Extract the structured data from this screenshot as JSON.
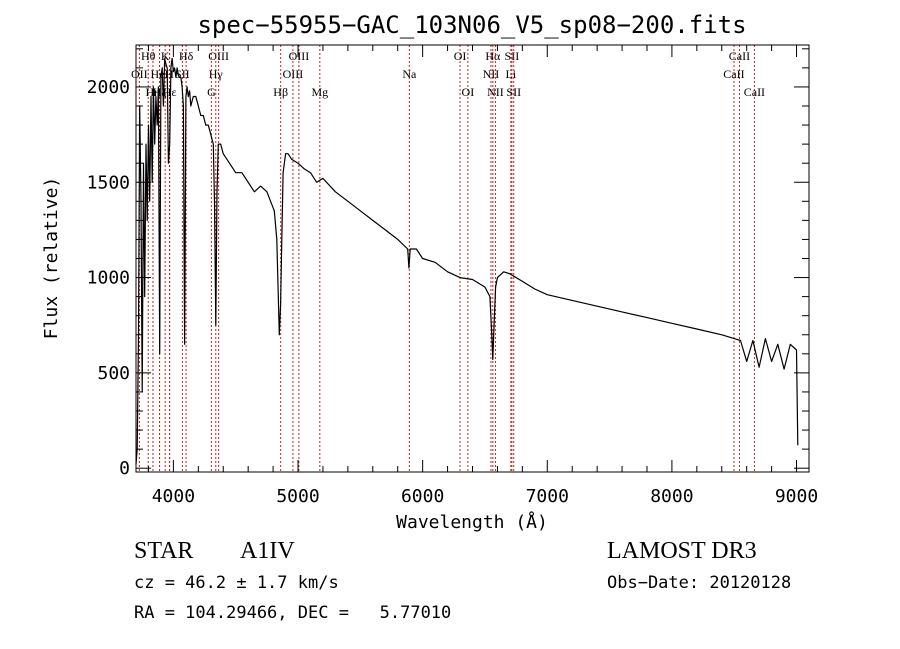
{
  "chart_data": {
    "type": "line",
    "title": "spec−55955−GAC_103N06_V5_sp08−200.fits",
    "xlabel": "Wavelength (Å)",
    "ylabel": "Flux (relative)",
    "xlim": [
      3700,
      9100
    ],
    "ylim": [
      -20,
      2220
    ],
    "xticks": [
      4000,
      5000,
      6000,
      7000,
      8000,
      9000
    ],
    "xtick_labels": [
      "4000",
      "5000",
      "6000",
      "7000",
      "8000",
      "9000"
    ],
    "yticks": [
      0,
      500,
      1000,
      1500,
      2000
    ],
    "ytick_labels": [
      "0",
      "500",
      "1000",
      "1500",
      "2000"
    ],
    "series": [
      {
        "name": "flux",
        "x": [
          3700,
          3710,
          3720,
          3730,
          3740,
          3750,
          3760,
          3770,
          3780,
          3790,
          3800,
          3810,
          3820,
          3830,
          3840,
          3850,
          3860,
          3870,
          3880,
          3890,
          3900,
          3910,
          3920,
          3930,
          3940,
          3950,
          3960,
          3970,
          3980,
          3990,
          4000,
          4010,
          4020,
          4030,
          4040,
          4050,
          4060,
          4070,
          4080,
          4090,
          4100,
          4110,
          4120,
          4130,
          4140,
          4160,
          4180,
          4200,
          4220,
          4240,
          4260,
          4280,
          4300,
          4320,
          4330,
          4340,
          4350,
          4360,
          4370,
          4380,
          4400,
          4450,
          4500,
          4550,
          4600,
          4650,
          4700,
          4750,
          4780,
          4810,
          4830,
          4850,
          4860,
          4870,
          4880,
          4900,
          4920,
          4950,
          5000,
          5050,
          5100,
          5150,
          5200,
          5300,
          5400,
          5500,
          5600,
          5700,
          5800,
          5880,
          5890,
          5900,
          5950,
          6000,
          6100,
          6200,
          6300,
          6400,
          6500,
          6540,
          6555,
          6563,
          6570,
          6585,
          6600,
          6650,
          6700,
          6800,
          6900,
          7000,
          7200,
          7400,
          7600,
          7800,
          8000,
          8200,
          8400,
          8500,
          8550,
          8600,
          8650,
          8700,
          8750,
          8800,
          8850,
          8900,
          8950,
          9000,
          9010
        ],
        "y": [
          20,
          100,
          700,
          1900,
          1400,
          400,
          1600,
          900,
          1700,
          1300,
          1800,
          1400,
          1950,
          1500,
          2000,
          1700,
          1950,
          1800,
          2000,
          600,
          2050,
          2100,
          1900,
          2150,
          2120,
          2100,
          1600,
          1700,
          2100,
          2150,
          2080,
          2100,
          2050,
          2100,
          2060,
          2050,
          2050,
          2000,
          1900,
          650,
          1950,
          2000,
          1950,
          1980,
          1900,
          1950,
          1950,
          1900,
          1850,
          1850,
          1800,
          1800,
          1750,
          1700,
          1400,
          750,
          1450,
          1700,
          1700,
          1700,
          1650,
          1600,
          1550,
          1550,
          1500,
          1450,
          1480,
          1450,
          1400,
          1350,
          1200,
          700,
          860,
          1200,
          1550,
          1650,
          1650,
          1620,
          1600,
          1570,
          1550,
          1500,
          1520,
          1450,
          1400,
          1350,
          1300,
          1250,
          1200,
          1150,
          1050,
          1150,
          1150,
          1100,
          1080,
          1030,
          1000,
          990,
          950,
          900,
          700,
          570,
          700,
          950,
          1000,
          1030,
          1020,
          980,
          940,
          910,
          880,
          850,
          820,
          790,
          760,
          730,
          700,
          680,
          670,
          560,
          670,
          530,
          680,
          560,
          650,
          520,
          650,
          620,
          120
        ]
      }
    ],
    "line_markers": [
      {
        "label": "Hθ",
        "wl": 3798,
        "row": 0
      },
      {
        "label": "OII",
        "wl": 3727,
        "row": 1
      },
      {
        "label": "Hη",
        "wl": 3836,
        "row": 2
      },
      {
        "label": "K",
        "wl": 3934,
        "row": 0
      },
      {
        "label": "HeI",
        "wl": 3889,
        "row": 1
      },
      {
        "label": "Hζ",
        "wl": 3889,
        "row": 2
      },
      {
        "label": "H",
        "wl": 3969,
        "row": 1
      },
      {
        "label": "Hε",
        "wl": 3970,
        "row": 2
      },
      {
        "label": "Hδ",
        "wl": 4102,
        "row": 0
      },
      {
        "label": "SII",
        "wl": 4072,
        "row": 1
      },
      {
        "label": "OIII",
        "wl": 4363,
        "row": 0
      },
      {
        "label": "Hγ",
        "wl": 4340,
        "row": 1
      },
      {
        "label": "G",
        "wl": 4305,
        "row": 2
      },
      {
        "label": "Hβ",
        "wl": 4861,
        "row": 2
      },
      {
        "label": "OIII",
        "wl": 5007,
        "row": 0
      },
      {
        "label": "OIII",
        "wl": 4959,
        "row": 1
      },
      {
        "label": "Mg",
        "wl": 5175,
        "row": 2
      },
      {
        "label": "Na",
        "wl": 5893,
        "row": 1
      },
      {
        "label": "OI",
        "wl": 6300,
        "row": 0
      },
      {
        "label": "OI",
        "wl": 6363,
        "row": 2
      },
      {
        "label": "Hα",
        "wl": 6563,
        "row": 0
      },
      {
        "label": "SII",
        "wl": 6716,
        "row": 0
      },
      {
        "label": "NII",
        "wl": 6548,
        "row": 1
      },
      {
        "label": "Li",
        "wl": 6708,
        "row": 1
      },
      {
        "label": "NII",
        "wl": 6584,
        "row": 2
      },
      {
        "label": "SII",
        "wl": 6731,
        "row": 2
      },
      {
        "label": "CaII",
        "wl": 8542,
        "row": 0
      },
      {
        "label": "CaII",
        "wl": 8498,
        "row": 1
      },
      {
        "label": "CaII",
        "wl": 8662,
        "row": 2
      }
    ]
  },
  "info": {
    "object_class": "STAR",
    "subclass": "A1IV",
    "survey": "LAMOST DR3",
    "redshift": "cz = 46.2 ± 1.7 km/s",
    "obs_date": "Obs−Date: 20120128",
    "coords": "RA = 104.29466, DEC =   5.77010"
  }
}
